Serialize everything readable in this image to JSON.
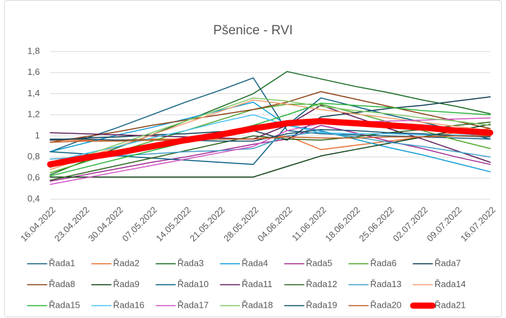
{
  "chart_data": {
    "type": "line",
    "title": "Pšenice - RVI",
    "categories": [
      "16.04.2022",
      "23.04.2022",
      "30.04.2022",
      "07.05.2022",
      "14.05.2022",
      "21.05.2022",
      "28.05.2022",
      "04.06.2022",
      "11.06.2022",
      "18.06.2022",
      "25.06.2022",
      "02.07.2022",
      "09.07.2022",
      "16.07.2022"
    ],
    "ylim": [
      0.4,
      1.8
    ],
    "yticks": [
      {
        "value": 0.4,
        "label": "0,4"
      },
      {
        "value": 0.6,
        "label": "0,6"
      },
      {
        "value": 0.8,
        "label": "0,8"
      },
      {
        "value": 1,
        "label": "1"
      },
      {
        "value": 1.2,
        "label": "1,2"
      },
      {
        "value": 1.4,
        "label": "1,4"
      },
      {
        "value": 1.6,
        "label": "1,6"
      },
      {
        "value": 1.8,
        "label": "1,8"
      }
    ],
    "grid": true,
    "legend": "bottom",
    "line_width": 1.5,
    "series": [
      {
        "name": "Řada1",
        "color": "#156082",
        "values": [
          0.85,
          0.97,
          1.08,
          1.2,
          1.32,
          1.43,
          1.55,
          1.05,
          1.02,
          1.01,
          1.0,
          0.99,
          0.98,
          0.97
        ]
      },
      {
        "name": "Řada2",
        "color": "#E97132",
        "values": [
          0.96,
          0.96,
          0.96,
          0.97,
          0.97,
          0.97,
          0.97,
          1.0,
          0.87,
          0.91,
          0.95,
          0.99,
          1.03,
          1.07
        ]
      },
      {
        "name": "Řada3",
        "color": "#196B24",
        "values": [
          0.63,
          0.76,
          0.89,
          1.01,
          1.14,
          1.27,
          1.4,
          1.61,
          1.54,
          1.47,
          1.41,
          1.34,
          1.28,
          1.21
        ]
      },
      {
        "name": "Řada4",
        "color": "#0F9ED5",
        "values": [
          0.85,
          0.93,
          1.01,
          1.08,
          1.16,
          1.24,
          1.32,
          1.1,
          1.05,
          0.97,
          0.89,
          0.82,
          0.74,
          0.66
        ]
      },
      {
        "name": "Řada5",
        "color": "#A02B93",
        "values": [
          0.57,
          0.63,
          0.69,
          0.75,
          0.8,
          0.86,
          0.92,
          0.97,
          1.1,
          1.03,
          0.95,
          0.88,
          0.8,
          0.73
        ]
      },
      {
        "name": "Řada6",
        "color": "#4EA72E",
        "values": [
          0.65,
          0.75,
          0.85,
          0.95,
          1.05,
          1.15,
          1.25,
          1.3,
          1.3,
          1.22,
          1.13,
          1.05,
          0.96,
          0.88
        ]
      },
      {
        "name": "Řada7",
        "color": "#0D3A4E",
        "values": [
          0.96,
          0.98,
          0.99,
          1.01,
          1.02,
          1.04,
          1.05,
          0.96,
          1.18,
          1.22,
          1.26,
          1.29,
          1.33,
          1.37
        ]
      },
      {
        "name": "Řada8",
        "color": "#8B4215",
        "values": [
          0.94,
          0.99,
          1.04,
          1.1,
          1.15,
          1.2,
          1.25,
          1.32,
          1.42,
          1.35,
          1.28,
          1.21,
          1.14,
          1.07
        ]
      },
      {
        "name": "Řada9",
        "color": "#0F4015",
        "values": [
          0.61,
          0.61,
          0.61,
          0.61,
          0.61,
          0.61,
          0.61,
          0.71,
          0.81,
          0.87,
          0.93,
          0.99,
          1.05,
          1.11
        ]
      },
      {
        "name": "Řada10",
        "color": "#095E80",
        "values": [
          0.85,
          0.83,
          0.81,
          0.79,
          0.77,
          0.75,
          0.73,
          1.1,
          1.36,
          1.28,
          1.2,
          1.13,
          1.05,
          0.97
        ]
      },
      {
        "name": "Řada11",
        "color": "#601A58",
        "values": [
          1.03,
          1.02,
          1.01,
          1.0,
          0.99,
          0.98,
          0.97,
          1.1,
          1.29,
          1.18,
          1.07,
          0.97,
          0.86,
          0.75
        ]
      },
      {
        "name": "Řada12",
        "color": "#2F641C",
        "values": [
          0.58,
          0.65,
          0.72,
          0.79,
          0.86,
          0.93,
          1.0,
          0.97,
          0.96,
          0.99,
          1.03,
          1.06,
          1.1,
          1.13
        ]
      },
      {
        "name": "Řada13",
        "color": "#3FA0C8",
        "values": [
          0.78,
          0.8,
          0.81,
          0.83,
          0.85,
          0.86,
          0.88,
          1.0,
          1.04,
          0.99,
          0.94,
          0.9,
          0.85,
          0.8
        ]
      },
      {
        "name": "Řada14",
        "color": "#F0A070",
        "values": [
          0.68,
          0.79,
          0.9,
          1.01,
          1.12,
          1.23,
          1.34,
          1.3,
          1.25,
          1.21,
          1.17,
          1.13,
          1.09,
          1.05
        ]
      },
      {
        "name": "Řada15",
        "color": "#2DB53E",
        "values": [
          0.62,
          0.7,
          0.78,
          0.86,
          0.94,
          1.02,
          1.1,
          1.2,
          1.31,
          1.29,
          1.27,
          1.24,
          1.22,
          1.2
        ]
      },
      {
        "name": "Řada16",
        "color": "#4BC3F2",
        "values": [
          0.75,
          0.83,
          0.9,
          0.98,
          1.05,
          1.13,
          1.2,
          1.1,
          1.03,
          1.02,
          1.02,
          1.01,
          1.01,
          1.0
        ]
      },
      {
        "name": "Řada17",
        "color": "#D156C4",
        "values": [
          0.54,
          0.6,
          0.66,
          0.72,
          0.78,
          0.84,
          0.9,
          1.05,
          1.12,
          1.13,
          1.14,
          1.15,
          1.16,
          1.17
        ]
      },
      {
        "name": "Řada18",
        "color": "#83CA6B",
        "values": [
          0.7,
          0.81,
          0.92,
          1.03,
          1.14,
          1.25,
          1.36,
          1.33,
          1.28,
          1.24,
          1.21,
          1.17,
          1.14,
          1.1
        ]
      },
      {
        "name": "Řada19",
        "color": "#16506D",
        "values": [
          0.97,
          0.97,
          0.96,
          0.96,
          0.96,
          0.95,
          0.95,
          1.02,
          1.06,
          1.05,
          1.03,
          1.02,
          1.0,
          0.99
        ]
      },
      {
        "name": "Řada20",
        "color": "#C15E28",
        "values": [
          0.94,
          0.95,
          0.95,
          0.96,
          0.96,
          0.97,
          0.97,
          0.99,
          0.98,
          0.98,
          0.99,
          0.99,
          1.0,
          1.0
        ]
      },
      {
        "name": "Řada21",
        "color": "#FF0000",
        "line_width": 9,
        "values": [
          0.73,
          0.79,
          0.84,
          0.9,
          0.96,
          1.01,
          1.07,
          1.12,
          1.14,
          1.12,
          1.1,
          1.08,
          1.05,
          1.03
        ]
      }
    ]
  }
}
